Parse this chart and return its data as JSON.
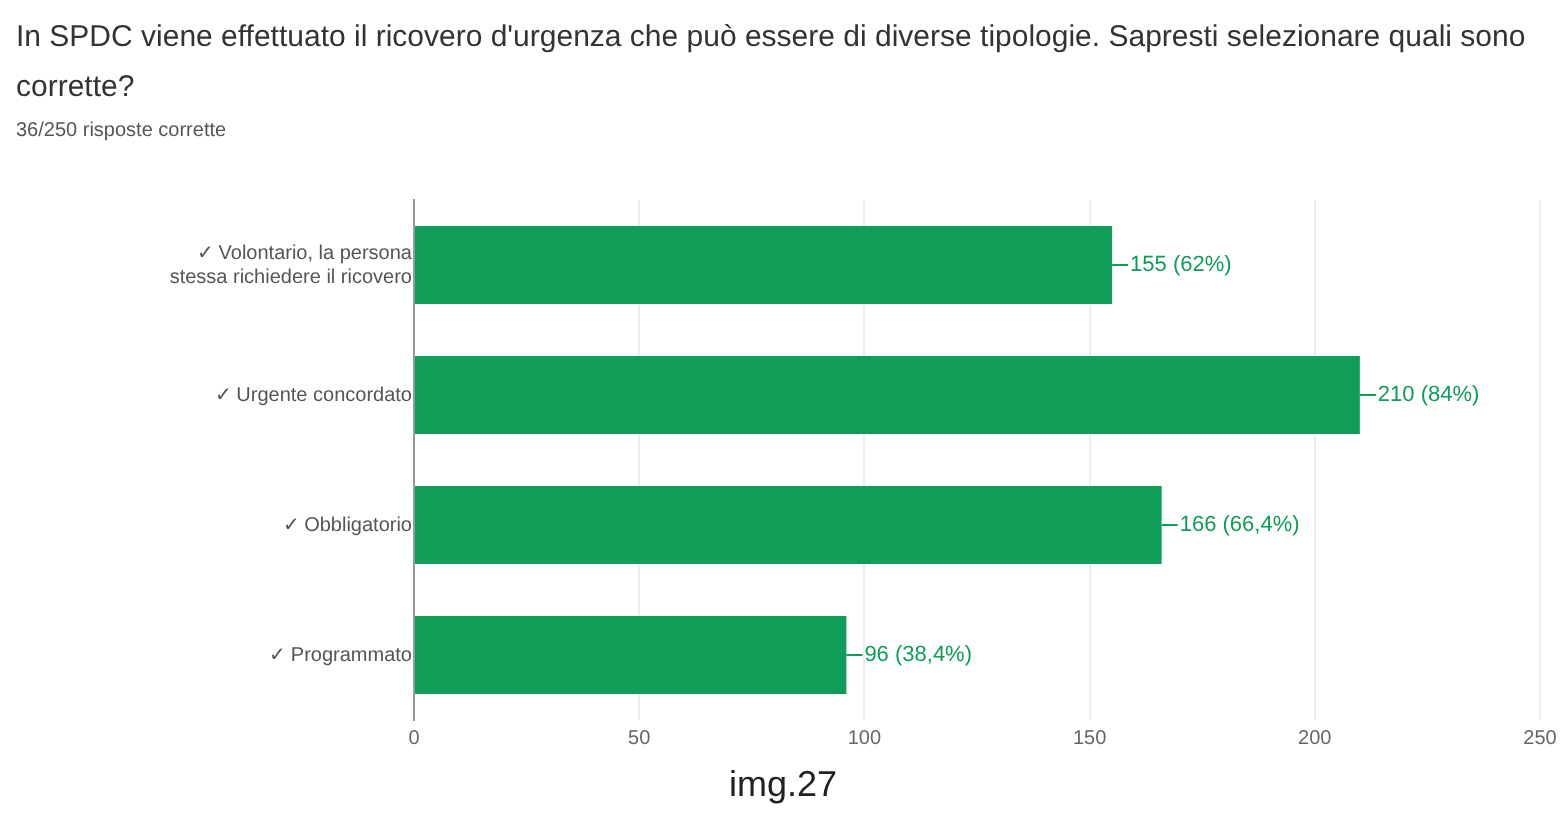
{
  "chart_data": {
    "type": "bar",
    "orientation": "horizontal",
    "title": "In SPDC viene effettuato il ricovero d'urgenza che può essere di diverse tipologie. Sapresti selezionare quali sono corrette?",
    "subtitle": "36/250 risposte corrette",
    "categories": [
      "✓ Volontario, la persona stessa richiedere il ricovero",
      "✓ Urgente concordato",
      "✓ Obbligatorio",
      "✓ Programmato"
    ],
    "values": [
      155,
      210,
      166,
      96
    ],
    "color": "#0f9d58",
    "value_labels": [
      "155 (62%)",
      "210 (84%)",
      "166 (66,4%)",
      "96 (38,4%)"
    ],
    "xlim": [
      0,
      250
    ],
    "xticks": [
      0,
      50,
      100,
      150,
      200,
      250
    ],
    "grid": "x",
    "annotations": [
      "img.27"
    ]
  }
}
